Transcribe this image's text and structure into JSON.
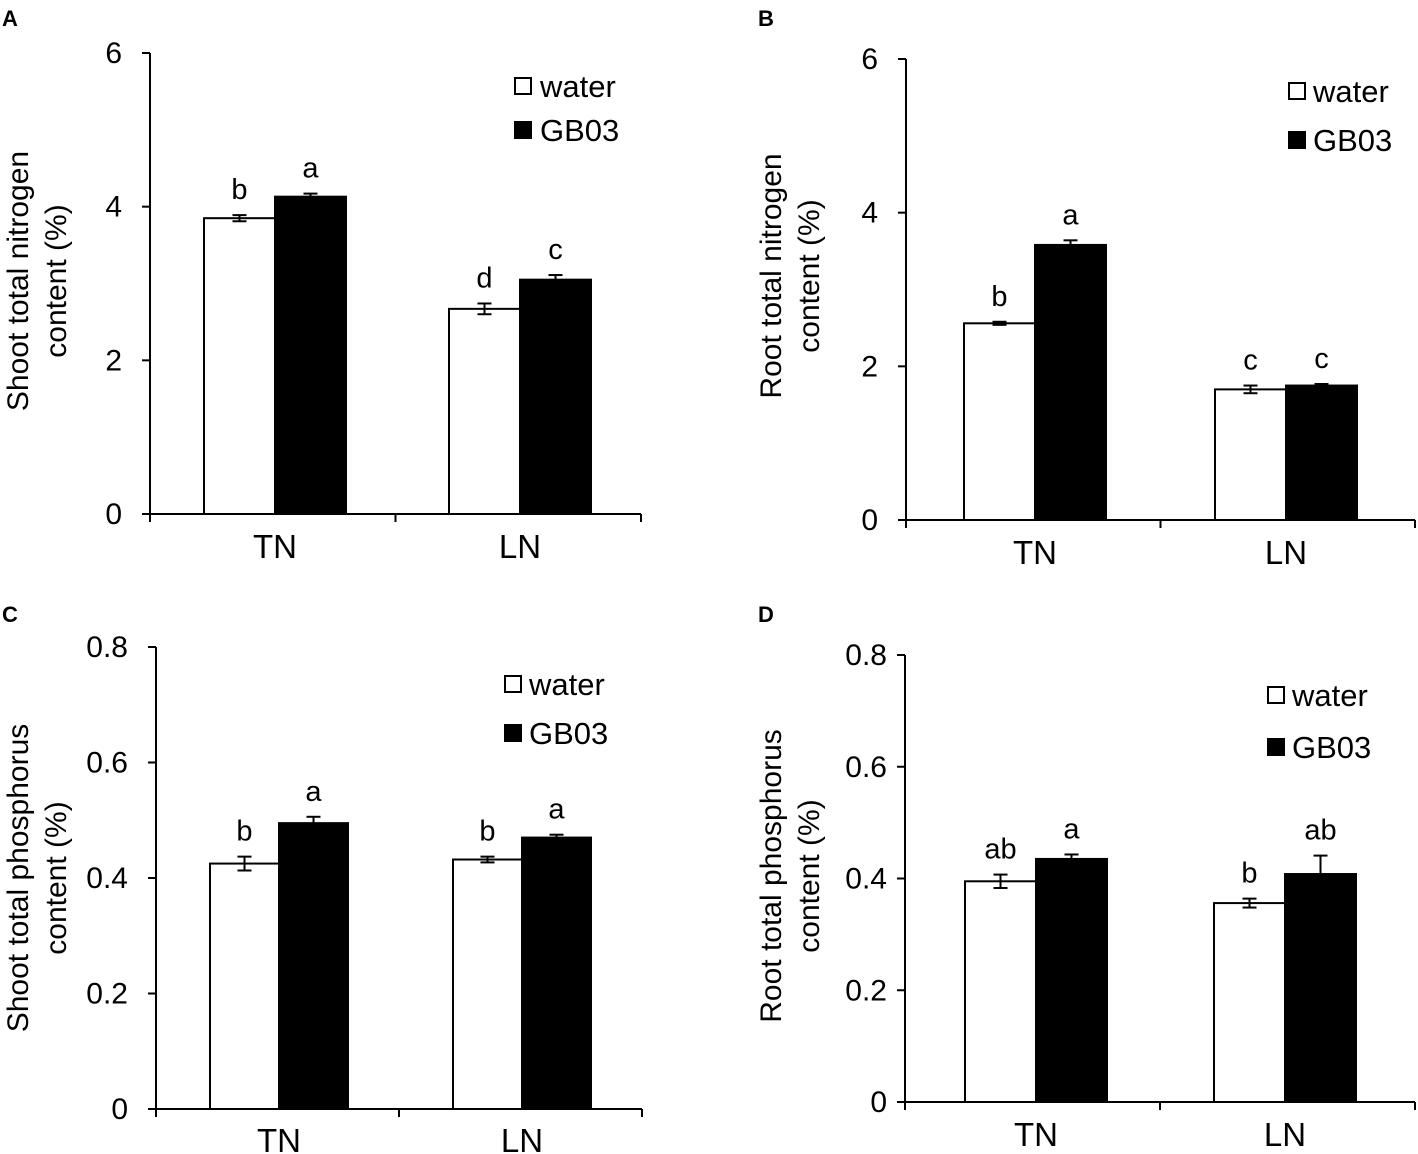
{
  "chart_data": [
    {
      "panel": "A",
      "type": "bar",
      "ylabel_lines": [
        "Shoot total nitrogen",
        "content (%)"
      ],
      "ylim": [
        0,
        6
      ],
      "yticks": [
        "0",
        "2",
        "4",
        "6"
      ],
      "ytick_values": [
        0,
        2,
        4,
        6
      ],
      "categories": [
        "TN",
        "LN"
      ],
      "series": [
        {
          "name": "water",
          "color": "#ffffff",
          "values": [
            3.85,
            2.67
          ],
          "errors": [
            0.04,
            0.07
          ],
          "sig": [
            "b",
            "d"
          ]
        },
        {
          "name": "GB03",
          "color": "#000000",
          "values": [
            4.13,
            3.05
          ],
          "errors": [
            0.04,
            0.06
          ],
          "sig": [
            "a",
            "c"
          ]
        }
      ]
    },
    {
      "panel": "B",
      "type": "bar",
      "ylabel_lines": [
        "Root total nitrogen",
        "content (%)"
      ],
      "ylim": [
        0,
        6
      ],
      "yticks": [
        "0",
        "2",
        "4",
        "6"
      ],
      "ytick_values": [
        0,
        2,
        4,
        6
      ],
      "categories": [
        "TN",
        "LN"
      ],
      "series": [
        {
          "name": "water",
          "color": "#ffffff",
          "values": [
            2.56,
            1.7
          ],
          "errors": [
            0.02,
            0.05
          ],
          "sig": [
            "b",
            "c"
          ]
        },
        {
          "name": "GB03",
          "color": "#000000",
          "values": [
            3.58,
            1.75
          ],
          "errors": [
            0.06,
            0.02
          ],
          "sig": [
            "a",
            "c"
          ]
        }
      ]
    },
    {
      "panel": "C",
      "type": "bar",
      "ylabel_lines": [
        "Shoot total phosphorus",
        "content (%)"
      ],
      "ylim": [
        0,
        0.8
      ],
      "yticks": [
        "0",
        "0.2",
        "0.4",
        "0.6",
        "0.8"
      ],
      "ytick_values": [
        0,
        0.2,
        0.4,
        0.6,
        0.8
      ],
      "categories": [
        "TN",
        "LN"
      ],
      "series": [
        {
          "name": "water",
          "color": "#ffffff",
          "values": [
            0.425,
            0.432
          ],
          "errors": [
            0.012,
            0.005
          ],
          "sig": [
            "b",
            "b"
          ]
        },
        {
          "name": "GB03",
          "color": "#000000",
          "values": [
            0.495,
            0.47
          ],
          "errors": [
            0.011,
            0.005
          ],
          "sig": [
            "a",
            "a"
          ]
        }
      ]
    },
    {
      "panel": "D",
      "type": "bar",
      "ylabel_lines": [
        "Root total phosphorus",
        "content (%)"
      ],
      "ylim": [
        0,
        0.8
      ],
      "yticks": [
        "0",
        "0.2",
        "0.4",
        "0.6",
        "0.8"
      ],
      "ytick_values": [
        0,
        0.2,
        0.4,
        0.6,
        0.8
      ],
      "categories": [
        "TN",
        "LN"
      ],
      "series": [
        {
          "name": "water",
          "color": "#ffffff",
          "values": [
            0.395,
            0.356
          ],
          "errors": [
            0.012,
            0.008
          ],
          "sig": [
            "ab",
            "b"
          ]
        },
        {
          "name": "GB03",
          "color": "#000000",
          "values": [
            0.435,
            0.408
          ],
          "errors": [
            0.008,
            0.033
          ],
          "sig": [
            "a",
            "ab"
          ]
        }
      ]
    }
  ]
}
